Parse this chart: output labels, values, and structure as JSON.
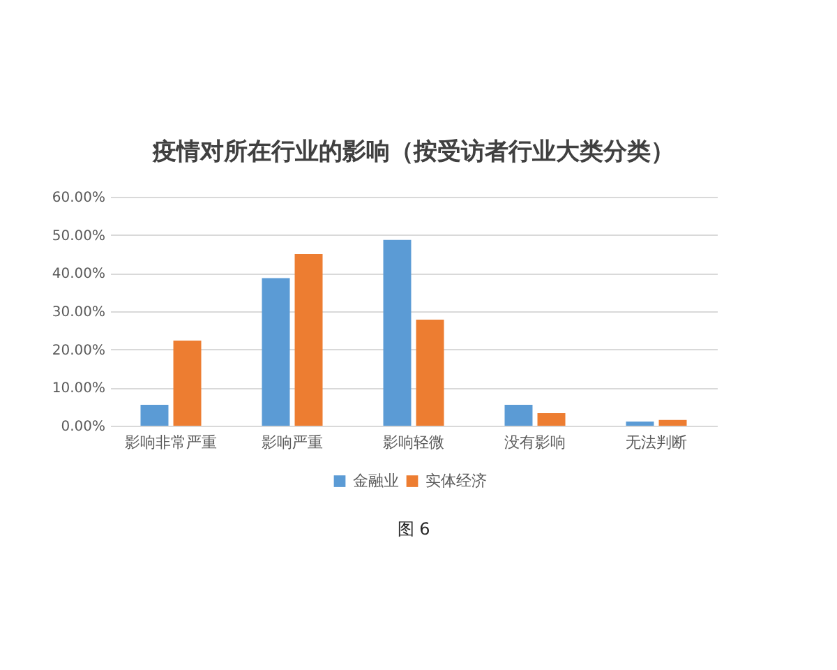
{
  "chart_data": {
    "type": "bar",
    "title": "疫情对所在行业的影响（按受访者行业大类分类）",
    "categories": [
      "影响非常严重",
      "影响严重",
      "影响轻微",
      "没有影响",
      "无法判断"
    ],
    "series": [
      {
        "name": "金融业",
        "color": "#5b9bd5",
        "values": [
          5.5,
          38.7,
          48.7,
          5.5,
          1.1
        ]
      },
      {
        "name": "实体经济",
        "color": "#ed7d31",
        "values": [
          22.3,
          45.0,
          27.8,
          3.3,
          1.5
        ]
      }
    ],
    "ylim": [
      0,
      60
    ],
    "yticks": [
      {
        "value": 0,
        "label": "0.00%"
      },
      {
        "value": 10,
        "label": "10.00%"
      },
      {
        "value": 20,
        "label": "20.00%"
      },
      {
        "value": 30,
        "label": "30.00%"
      },
      {
        "value": 40,
        "label": "40.00%"
      },
      {
        "value": 50,
        "label": "50.00%"
      },
      {
        "value": 60,
        "label": "60.00%"
      }
    ],
    "grid": "y",
    "legend": "bottom",
    "annotations": [
      "图 6"
    ]
  }
}
